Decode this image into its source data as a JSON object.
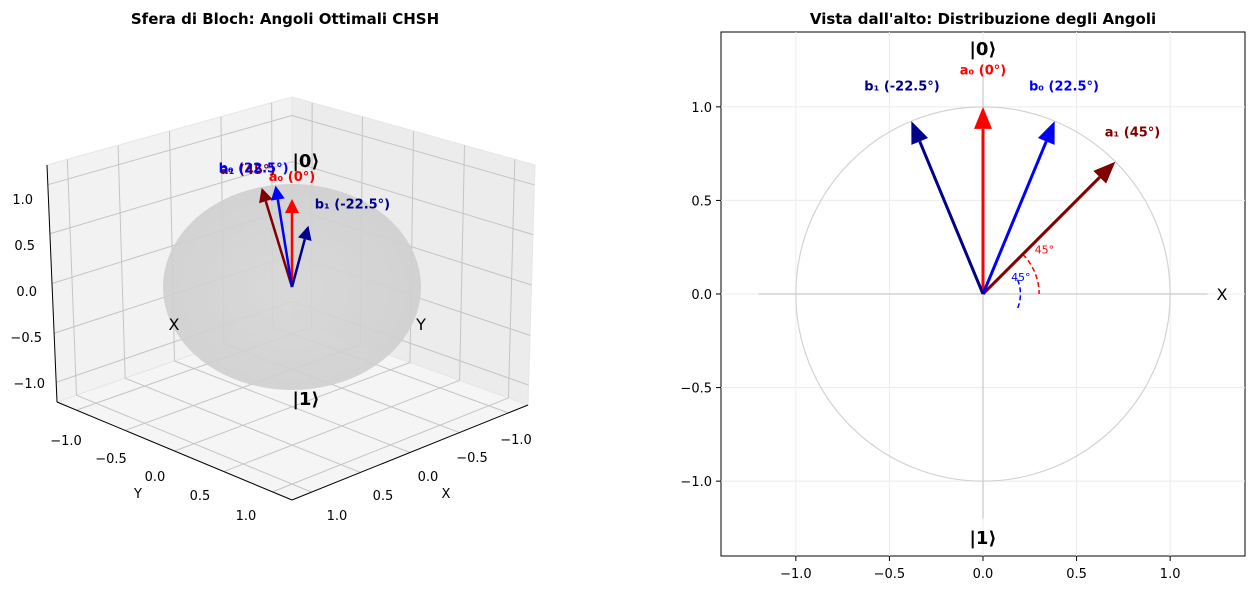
{
  "chart_data": [
    {
      "type": "3d-vector",
      "title": "Sfera di Bloch: Angoli Ottimali CHSH",
      "xlabel": "X",
      "ylabel": "Y",
      "xlim": [
        -1.2,
        1.2
      ],
      "ylim": [
        -1.2,
        1.2
      ],
      "zlim": [
        -1.2,
        1.2
      ],
      "x_ticks": [
        "−1.0",
        "−0.5",
        "0.0",
        "0.5",
        "1.0"
      ],
      "y_ticks": [
        "−1.0",
        "−0.5",
        "0.0",
        "0.5",
        "1.0"
      ],
      "z_ticks": [
        "1.0",
        "0.5",
        "0.0",
        "−0.5",
        "−1.0"
      ],
      "state_labels": {
        "top": "|0⟩",
        "bottom": "|1⟩",
        "x": "X",
        "y": "Y"
      },
      "grid": true,
      "vectors": [
        {
          "label": "a₀ (0°)",
          "color": "#ff0000",
          "x": 0.0,
          "y": 0.0,
          "z": 1.0
        },
        {
          "label": "a₁ (45°)",
          "color": "#800000",
          "x": 0.707,
          "y": 0.0,
          "z": 0.707
        },
        {
          "label": "b₀ (22.5°)",
          "color": "#0000ff",
          "x": 0.383,
          "y": 0.0,
          "z": 0.924
        },
        {
          "label": "b₁ (-22.5°)",
          "color": "#00008b",
          "x": -0.383,
          "y": 0.0,
          "z": 0.924
        }
      ]
    },
    {
      "type": "2d-vector",
      "title": "Vista dall'alto: Distribuzione degli Angoli",
      "xlim": [
        -1.4,
        1.4
      ],
      "ylim": [
        -1.4,
        1.4
      ],
      "x_ticks": [
        "−1.0",
        "−0.5",
        "0.0",
        "0.5",
        "1.0"
      ],
      "y_ticks": [
        "1.0",
        "0.5",
        "0.0",
        "−0.5",
        "−1.0"
      ],
      "state_labels": {
        "top": "|0⟩",
        "bottom": "|1⟩",
        "x": "X"
      },
      "grid": true,
      "vectors": [
        {
          "label": "a₀ (0°)",
          "color": "#ff0000",
          "x": 0.0,
          "y": 1.0
        },
        {
          "label": "a₁ (45°)",
          "color": "#800000",
          "x": 0.707,
          "y": 0.707
        },
        {
          "label": "b₀ (22.5°)",
          "color": "#0000ff",
          "x": 0.383,
          "y": 0.924
        },
        {
          "label": "b₁ (-22.5°)",
          "color": "#00008b",
          "x": -0.383,
          "y": 0.924
        }
      ],
      "angle_arcs": [
        {
          "label": "45°",
          "color": "#ff0000"
        },
        {
          "label": "45°",
          "color": "#0000ff"
        }
      ]
    }
  ]
}
